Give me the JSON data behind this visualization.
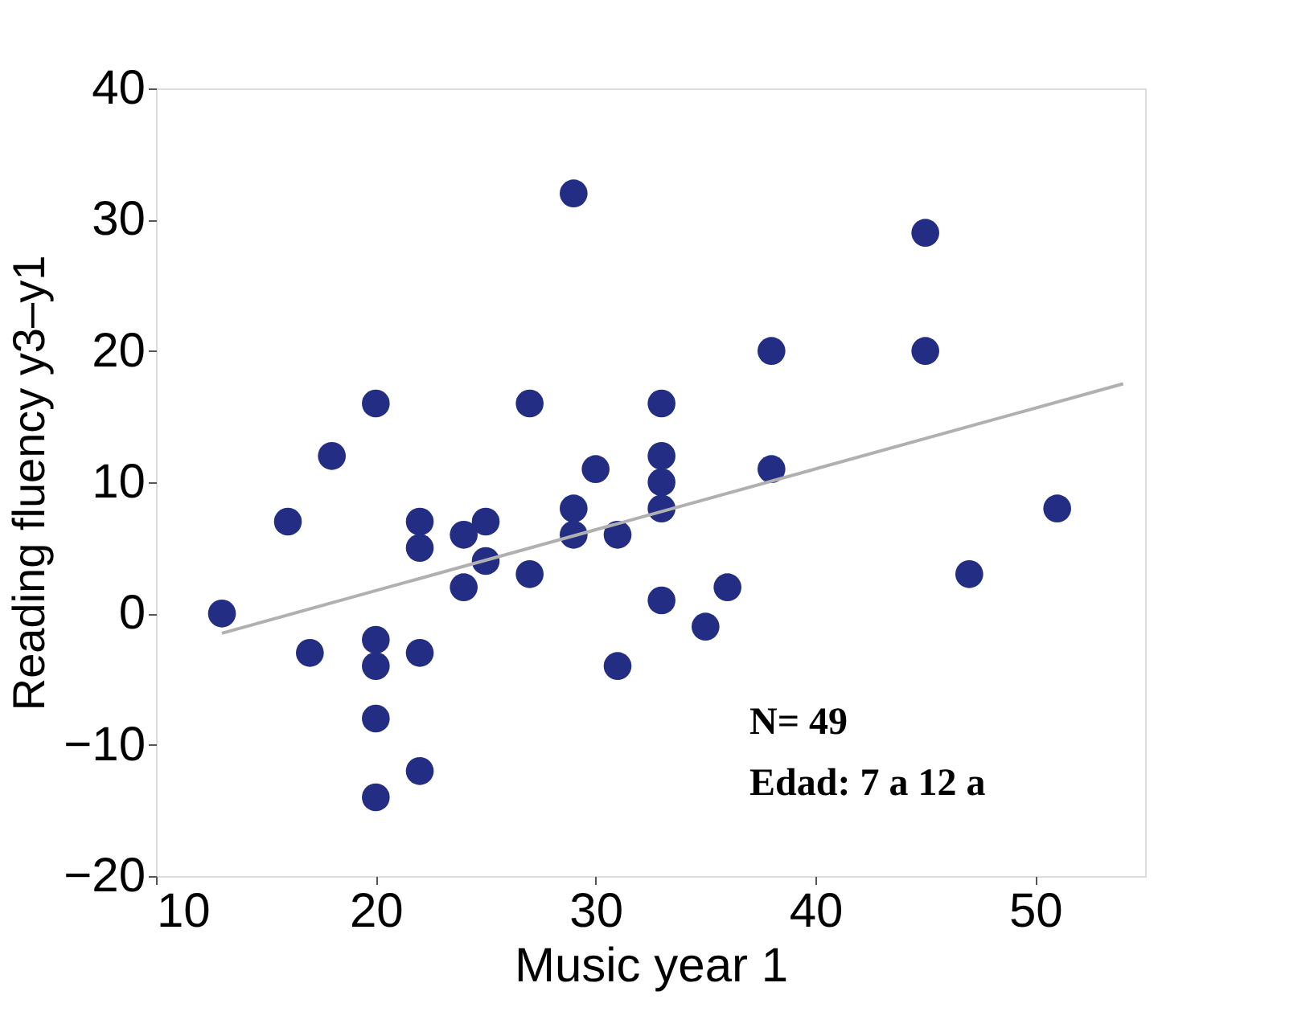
{
  "chart_data": {
    "type": "scatter",
    "xlabel": "Music year 1",
    "ylabel": "Reading fluency y3–y1",
    "xlim": [
      10,
      55
    ],
    "xticks": [
      10,
      20,
      30,
      40,
      50
    ],
    "ylim": [
      -20,
      40
    ],
    "yticks": [
      -20,
      -10,
      0,
      10,
      20,
      30,
      40
    ],
    "grid": false,
    "series": [
      {
        "marker": "circle",
        "color": "#232d84",
        "x": [
          13,
          16,
          17,
          18,
          20,
          20,
          20,
          20,
          20,
          22,
          22,
          22,
          22,
          24,
          24,
          25,
          25,
          27,
          27,
          29,
          29,
          29,
          30,
          31,
          31,
          33,
          33,
          33,
          33,
          33,
          35,
          36,
          38,
          38,
          45,
          45,
          47,
          51
        ],
        "values": [
          0,
          7,
          -3,
          12,
          16,
          -2,
          -4,
          -8,
          -14,
          7,
          5,
          -3,
          -12,
          2,
          6,
          7,
          4,
          16,
          3,
          32,
          8,
          6,
          11,
          6,
          -4,
          16,
          12,
          10,
          8,
          1,
          -1,
          2,
          20,
          11,
          29,
          20,
          3,
          8
        ]
      },
      {
        "type": "line",
        "marker": "none",
        "line_style": "solid",
        "color": "#b0b0b0",
        "x": [
          13,
          54
        ],
        "values": [
          -1.5,
          17.5
        ]
      }
    ],
    "annotations": [
      "N= 49",
      "Edad: 7 a 12 a"
    ]
  }
}
